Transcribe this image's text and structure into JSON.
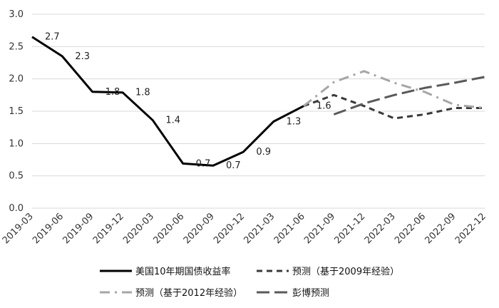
{
  "chart_data": {
    "type": "line",
    "title": "",
    "xlabel": "",
    "ylabel": "",
    "categories": [
      "2019-03",
      "2019-06",
      "2019-09",
      "2019-12",
      "2020-03",
      "2020-06",
      "2020-09",
      "2020-12",
      "2021-03",
      "2021-06",
      "2021-09",
      "2021-12",
      "2022-03",
      "2022-06",
      "2022-09",
      "2022-12"
    ],
    "ylim": [
      0,
      3.0
    ],
    "yticks": [
      "0.0",
      "0.5",
      "1.0",
      "1.5",
      "2.0",
      "2.5",
      "3.0"
    ],
    "grid": true,
    "legend_position": "bottom",
    "series": [
      {
        "name": "美国10年期国债收益率",
        "style": "solid",
        "color": "#000000",
        "values": [
          2.65,
          2.35,
          1.8,
          1.79,
          1.36,
          0.69,
          0.66,
          0.87,
          1.34,
          1.58,
          null,
          null,
          null,
          null,
          null,
          null
        ],
        "labels": [
          "2.7",
          "2.3",
          "1.8",
          "1.8",
          "1.4",
          "0.7",
          "0.7",
          "0.9",
          "1.3",
          "1.6",
          "",
          "",
          "",
          "",
          "",
          ""
        ]
      },
      {
        "name": "预测（基于2009年经验）",
        "style": "dashed",
        "color": "#3a3a3a",
        "values": [
          null,
          null,
          null,
          null,
          null,
          null,
          null,
          null,
          null,
          1.58,
          1.75,
          1.58,
          1.39,
          1.45,
          1.55,
          1.55
        ]
      },
      {
        "name": "预测（基于2012年经验）",
        "style": "dashdot",
        "color": "#a6a6a6",
        "values": [
          null,
          null,
          null,
          null,
          null,
          null,
          null,
          null,
          null,
          1.58,
          1.95,
          2.12,
          1.94,
          1.8,
          1.6,
          1.55
        ]
      },
      {
        "name": "彭博预测",
        "style": "longdash",
        "color": "#595959",
        "values": [
          null,
          null,
          null,
          null,
          null,
          null,
          null,
          null,
          null,
          null,
          1.45,
          1.62,
          1.75,
          1.86,
          1.94,
          2.03
        ]
      }
    ]
  }
}
